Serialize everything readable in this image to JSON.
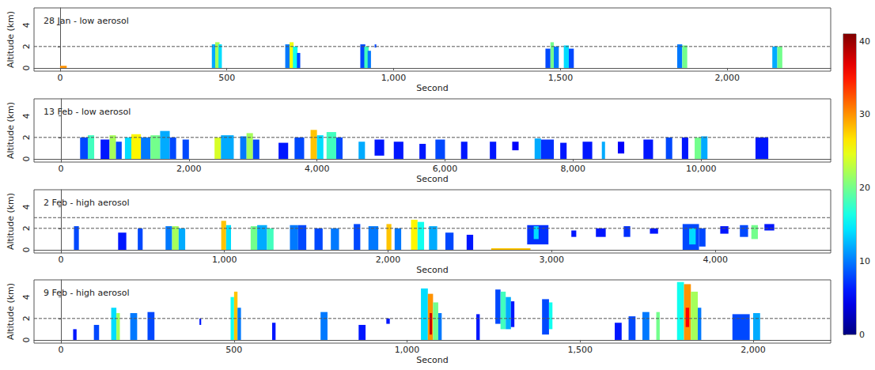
{
  "chart_data": [
    {
      "type": "heatmap",
      "title": "28 Jan - low aerosol",
      "xlabel": "Second",
      "ylabel": "Altitude (km)",
      "xlim": [
        -78,
        2310
      ],
      "xticks": [
        0,
        500,
        1000,
        1500,
        2000
      ],
      "ylim": [
        -0.3,
        5.6
      ],
      "yticks": [
        0,
        2,
        4
      ],
      "grid": false,
      "reference_lines": [
        {
          "y": 2,
          "line_style": "dashed"
        }
      ],
      "cells": [
        [
          0,
          20,
          0,
          0.2,
          30
        ],
        [
          455,
          470,
          0,
          2.2,
          12
        ],
        [
          465,
          478,
          0,
          2.4,
          22
        ],
        [
          475,
          485,
          0,
          2.2,
          14
        ],
        [
          675,
          690,
          0,
          2.2,
          10
        ],
        [
          688,
          700,
          0,
          2.4,
          25
        ],
        [
          698,
          712,
          0,
          2.0,
          16
        ],
        [
          710,
          720,
          0,
          1.4,
          8
        ],
        [
          900,
          915,
          0,
          2.2,
          8
        ],
        [
          912,
          925,
          0,
          2.0,
          18
        ],
        [
          922,
          932,
          0,
          1.6,
          10
        ],
        [
          943,
          948,
          1.9,
          2.2,
          8
        ],
        [
          1455,
          1470,
          0,
          1.8,
          8
        ],
        [
          1470,
          1480,
          0,
          2.4,
          20
        ],
        [
          1480,
          1495,
          0,
          2.0,
          10
        ],
        [
          1510,
          1525,
          0,
          2.1,
          14
        ],
        [
          1525,
          1540,
          0,
          1.8,
          8
        ],
        [
          1850,
          1865,
          0,
          2.2,
          10
        ],
        [
          1865,
          1880,
          0,
          2.1,
          20
        ],
        [
          2135,
          2150,
          0,
          2.0,
          12
        ],
        [
          2150,
          2165,
          0,
          2.0,
          20
        ]
      ]
    },
    {
      "type": "heatmap",
      "title": "13 Feb - low aerosol",
      "xlabel": "Second",
      "ylabel": "Altitude (km)",
      "xlim": [
        -420,
        12025
      ],
      "xticks": [
        0,
        2000,
        4000,
        6000,
        8000,
        10000
      ],
      "ylim": [
        -0.3,
        5.6
      ],
      "yticks": [
        0,
        2,
        4
      ],
      "grid": false,
      "reference_lines": [
        {
          "y": 2,
          "line_style": "dashed"
        }
      ],
      "cells": [
        [
          300,
          420,
          0,
          2.0,
          8
        ],
        [
          420,
          520,
          0,
          2.2,
          18
        ],
        [
          620,
          760,
          0,
          1.8,
          6
        ],
        [
          760,
          860,
          0,
          2.2,
          22
        ],
        [
          860,
          950,
          0,
          1.6,
          8
        ],
        [
          1000,
          1100,
          0,
          2.0,
          14
        ],
        [
          1100,
          1250,
          0,
          2.3,
          26
        ],
        [
          1250,
          1400,
          0,
          2.0,
          10
        ],
        [
          1400,
          1550,
          0,
          2.2,
          20
        ],
        [
          1550,
          1700,
          0,
          2.6,
          12
        ],
        [
          1700,
          1800,
          0,
          2.0,
          8
        ],
        [
          1900,
          2000,
          0,
          1.8,
          8
        ],
        [
          2400,
          2500,
          0,
          2.0,
          24
        ],
        [
          2500,
          2700,
          0,
          2.2,
          12
        ],
        [
          2800,
          2900,
          0,
          2.1,
          10
        ],
        [
          2900,
          3000,
          0,
          2.4,
          22
        ],
        [
          3000,
          3100,
          0,
          1.8,
          8
        ],
        [
          3400,
          3550,
          0,
          1.5,
          6
        ],
        [
          3650,
          3800,
          0,
          2.0,
          8
        ],
        [
          3900,
          4000,
          0,
          2.7,
          28
        ],
        [
          4000,
          4100,
          0,
          2.2,
          14
        ],
        [
          4150,
          4300,
          0,
          2.5,
          18
        ],
        [
          4300,
          4400,
          0,
          2.0,
          8
        ],
        [
          4650,
          4750,
          0,
          1.6,
          12
        ],
        [
          4900,
          5050,
          0.3,
          1.8,
          6
        ],
        [
          5200,
          5350,
          0,
          1.6,
          6
        ],
        [
          5600,
          5700,
          0,
          1.4,
          6
        ],
        [
          5850,
          6000,
          0,
          1.8,
          8
        ],
        [
          6250,
          6350,
          0,
          1.6,
          6
        ],
        [
          6700,
          6800,
          0,
          1.6,
          6
        ],
        [
          7050,
          7150,
          0.8,
          1.6,
          5
        ],
        [
          7400,
          7500,
          0,
          1.9,
          12
        ],
        [
          7500,
          7700,
          0,
          1.8,
          7
        ],
        [
          7800,
          7900,
          0,
          1.5,
          6
        ],
        [
          8150,
          8300,
          0,
          1.6,
          6
        ],
        [
          8450,
          8500,
          0,
          1.6,
          12
        ],
        [
          8700,
          8800,
          0.5,
          1.6,
          5
        ],
        [
          9100,
          9250,
          0,
          1.8,
          6
        ],
        [
          9450,
          9550,
          0,
          2.0,
          8
        ],
        [
          9700,
          9800,
          0,
          2.0,
          6
        ],
        [
          9900,
          10000,
          0,
          2.0,
          20
        ],
        [
          10000,
          10100,
          0,
          2.1,
          12
        ],
        [
          10850,
          11050,
          0,
          2.0,
          6
        ]
      ]
    },
    {
      "type": "heatmap",
      "title": "2 Feb - high aerosol",
      "xlabel": "Second",
      "ylabel": "Altitude (km)",
      "xlim": [
        -164,
        4705
      ],
      "xticks": [
        0,
        1000,
        2000,
        3000,
        4000
      ],
      "ylim": [
        -0.3,
        5.6
      ],
      "yticks": [
        0,
        2,
        4
      ],
      "grid": false,
      "reference_lines": [
        {
          "y": 2,
          "line_style": "dashed"
        },
        {
          "y": 3,
          "line_style": "dashed"
        }
      ],
      "cells": [
        [
          80,
          110,
          0,
          2.2,
          8
        ],
        [
          350,
          400,
          0,
          1.6,
          6
        ],
        [
          470,
          500,
          0,
          2.0,
          8
        ],
        [
          640,
          680,
          0,
          2.2,
          10
        ],
        [
          680,
          720,
          0,
          2.2,
          22
        ],
        [
          720,
          760,
          0,
          2.0,
          12
        ],
        [
          980,
          1010,
          0,
          2.7,
          28
        ],
        [
          1010,
          1040,
          0,
          2.3,
          14
        ],
        [
          1160,
          1200,
          0,
          2.2,
          20
        ],
        [
          1200,
          1260,
          0,
          2.3,
          12
        ],
        [
          1260,
          1300,
          0,
          2.0,
          18
        ],
        [
          1400,
          1450,
          0,
          2.3,
          10
        ],
        [
          1450,
          1500,
          0,
          2.3,
          8
        ],
        [
          1550,
          1600,
          0,
          2.0,
          8
        ],
        [
          1650,
          1700,
          0,
          2.0,
          10
        ],
        [
          1790,
          1830,
          0,
          2.4,
          8
        ],
        [
          1880,
          1940,
          0,
          2.2,
          10
        ],
        [
          1990,
          2020,
          0,
          2.4,
          28
        ],
        [
          2040,
          2080,
          0,
          2.0,
          10
        ],
        [
          2140,
          2180,
          0,
          2.8,
          26
        ],
        [
          2180,
          2220,
          0,
          2.6,
          16
        ],
        [
          2250,
          2300,
          0,
          2.2,
          12
        ],
        [
          2350,
          2400,
          0,
          1.6,
          8
        ],
        [
          2480,
          2520,
          0,
          1.4,
          6
        ],
        [
          2630,
          2870,
          0,
          0.15,
          28
        ],
        [
          2850,
          2980,
          0.5,
          2.3,
          7
        ],
        [
          2890,
          2920,
          1.0,
          2.2,
          14
        ],
        [
          3120,
          3150,
          1.2,
          1.8,
          6
        ],
        [
          3270,
          3330,
          1.2,
          2.0,
          6
        ],
        [
          3440,
          3480,
          1.2,
          2.2,
          7
        ],
        [
          3600,
          3650,
          1.5,
          2.0,
          6
        ],
        [
          3800,
          3900,
          0,
          2.4,
          8
        ],
        [
          3840,
          3880,
          0.5,
          2.0,
          14
        ],
        [
          3900,
          3940,
          0.3,
          2.0,
          8
        ],
        [
          4030,
          4080,
          1.5,
          2.2,
          6
        ],
        [
          4150,
          4200,
          1.2,
          2.3,
          8
        ],
        [
          4220,
          4260,
          1.0,
          2.3,
          20
        ],
        [
          4300,
          4360,
          1.8,
          2.4,
          6
        ]
      ]
    },
    {
      "type": "heatmap",
      "title": "9 Feb - high aerosol",
      "xlabel": "Second",
      "ylabel": "Altitude (km)",
      "xlim": [
        -78,
        2224
      ],
      "xticks": [
        0,
        500,
        1000,
        1500,
        2000
      ],
      "ylim": [
        -0.3,
        5.6
      ],
      "yticks": [
        0,
        2,
        4
      ],
      "grid": false,
      "reference_lines": [
        {
          "y": 2,
          "line_style": "dashed"
        }
      ],
      "cells": [
        [
          35,
          45,
          0,
          1.0,
          6
        ],
        [
          95,
          110,
          0,
          1.4,
          8
        ],
        [
          145,
          160,
          0,
          3.0,
          14
        ],
        [
          160,
          170,
          0,
          2.5,
          22
        ],
        [
          200,
          220,
          0,
          2.5,
          10
        ],
        [
          250,
          270,
          0,
          2.6,
          8
        ],
        [
          400,
          405,
          1.4,
          2.0,
          6
        ],
        [
          490,
          500,
          0,
          4.0,
          16
        ],
        [
          500,
          510,
          0,
          4.5,
          28
        ],
        [
          510,
          520,
          0,
          3.0,
          10
        ],
        [
          610,
          620,
          0,
          1.6,
          6
        ],
        [
          750,
          770,
          0,
          2.6,
          10
        ],
        [
          860,
          880,
          0,
          1.4,
          6
        ],
        [
          940,
          950,
          1.5,
          2.0,
          6
        ],
        [
          1040,
          1060,
          0,
          4.8,
          14
        ],
        [
          1060,
          1075,
          0,
          4.3,
          30
        ],
        [
          1075,
          1090,
          0,
          3.5,
          20
        ],
        [
          1090,
          1100,
          0,
          2.5,
          10
        ],
        [
          1065,
          1072,
          0.5,
          2.5,
          38
        ],
        [
          1200,
          1210,
          0,
          2.4,
          6
        ],
        [
          1255,
          1270,
          1.5,
          4.7,
          8
        ],
        [
          1270,
          1285,
          1.0,
          4.5,
          18
        ],
        [
          1285,
          1300,
          1.0,
          4.0,
          12
        ],
        [
          1300,
          1310,
          1.2,
          3.6,
          6
        ],
        [
          1390,
          1410,
          0.5,
          3.8,
          8
        ],
        [
          1410,
          1420,
          1.0,
          3.5,
          16
        ],
        [
          1600,
          1620,
          0,
          1.6,
          6
        ],
        [
          1640,
          1660,
          0,
          2.2,
          8
        ],
        [
          1680,
          1700,
          0,
          2.6,
          10
        ],
        [
          1720,
          1730,
          0,
          2.6,
          20
        ],
        [
          1780,
          1800,
          0,
          5.4,
          16
        ],
        [
          1800,
          1820,
          0,
          5.2,
          30
        ],
        [
          1820,
          1840,
          0,
          4.5,
          22
        ],
        [
          1840,
          1850,
          0,
          3.0,
          10
        ],
        [
          1805,
          1815,
          1.2,
          3.0,
          36
        ],
        [
          1940,
          1990,
          0,
          2.4,
          8
        ],
        [
          2000,
          2020,
          0,
          2.5,
          12
        ]
      ]
    }
  ],
  "colorbar": {
    "range": [
      0,
      41
    ],
    "ticks": [
      0,
      10,
      20,
      30,
      40
    ]
  }
}
